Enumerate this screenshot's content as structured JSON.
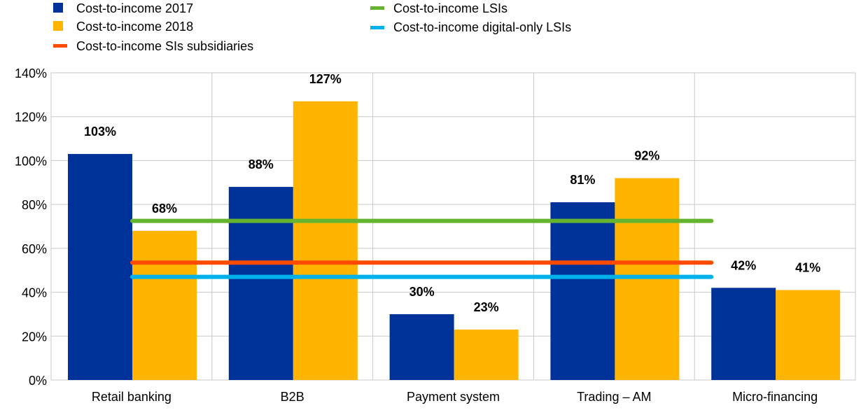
{
  "chart_data": {
    "type": "bar",
    "categories": [
      "Retail banking",
      "B2B",
      "Payment system",
      "Trading – AM",
      "Micro-financing"
    ],
    "series": [
      {
        "name": "Cost-to-income 2017",
        "values": [
          103,
          88,
          30,
          81,
          42
        ],
        "labels": [
          "103%",
          "88%",
          "30%",
          "81%",
          "42%"
        ],
        "color": "#003399"
      },
      {
        "name": "Cost-to-income 2018",
        "values": [
          68,
          127,
          23,
          92,
          41
        ],
        "labels": [
          "68%",
          "127%",
          "23%",
          "92%",
          "41%"
        ],
        "color": "#FFB400"
      }
    ],
    "reference_lines": [
      {
        "name": "Cost-to-income LSIs",
        "value": 72.5,
        "color": "#65B32E"
      },
      {
        "name": "Cost-to-income SIs subsidiaries",
        "value": 53.5,
        "color": "#FF4B00"
      },
      {
        "name": "Cost-to-income digital-only LSIs",
        "value": 47,
        "color": "#00B1EA"
      }
    ],
    "ylim": [
      0,
      140
    ],
    "yticks": [
      0,
      20,
      40,
      60,
      80,
      100,
      120,
      140
    ],
    "ytick_labels": [
      "0%",
      "20%",
      "40%",
      "60%",
      "80%",
      "100%",
      "120%",
      "140%"
    ],
    "grid": true,
    "legend": [
      {
        "label": "Cost-to-income 2017",
        "color": "#003399"
      },
      {
        "label": "Cost-to-income 2018",
        "color": "#FFB400"
      },
      {
        "label": "Cost-to-income SIs subsidiaries",
        "color": "#FF4B00"
      },
      {
        "label": "Cost-to-income LSIs",
        "color": "#65B32E"
      },
      {
        "label": "Cost-to-income digital-only LSIs",
        "color": "#00B1EA"
      }
    ],
    "legend_position": "top",
    "title": "",
    "xlabel": "",
    "ylabel": ""
  }
}
